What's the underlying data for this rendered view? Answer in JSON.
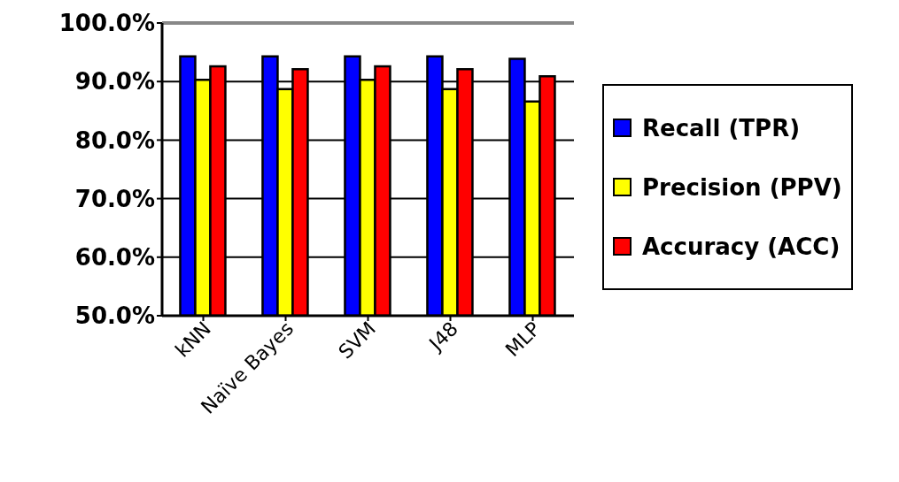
{
  "chart_data": {
    "type": "bar",
    "categories": [
      "kNN",
      "Naïve Bayes",
      "SVM",
      "J48",
      "MLP"
    ],
    "series": [
      {
        "name": "Recall (TPR)",
        "color": "#0000ff",
        "values": [
          94.3,
          94.3,
          94.3,
          94.3,
          93.9
        ]
      },
      {
        "name": "Precision (PPV)",
        "color": "#ffff00",
        "values": [
          90.3,
          88.7,
          90.3,
          88.7,
          86.6
        ]
      },
      {
        "name": "Accuracy (ACC)",
        "color": "#ff0000",
        "values": [
          92.6,
          92.1,
          92.6,
          92.1,
          90.9
        ]
      }
    ],
    "ylim": [
      50,
      100
    ],
    "yticks": [
      {
        "value": 50,
        "label": "50.0%"
      },
      {
        "value": 60,
        "label": "60.0%"
      },
      {
        "value": 70,
        "label": "70.0%"
      },
      {
        "value": 80,
        "label": "80.0%"
      },
      {
        "value": 90,
        "label": "90.0%"
      },
      {
        "value": 100,
        "label": "100.0%"
      }
    ],
    "grid": "y",
    "legend": "right"
  }
}
